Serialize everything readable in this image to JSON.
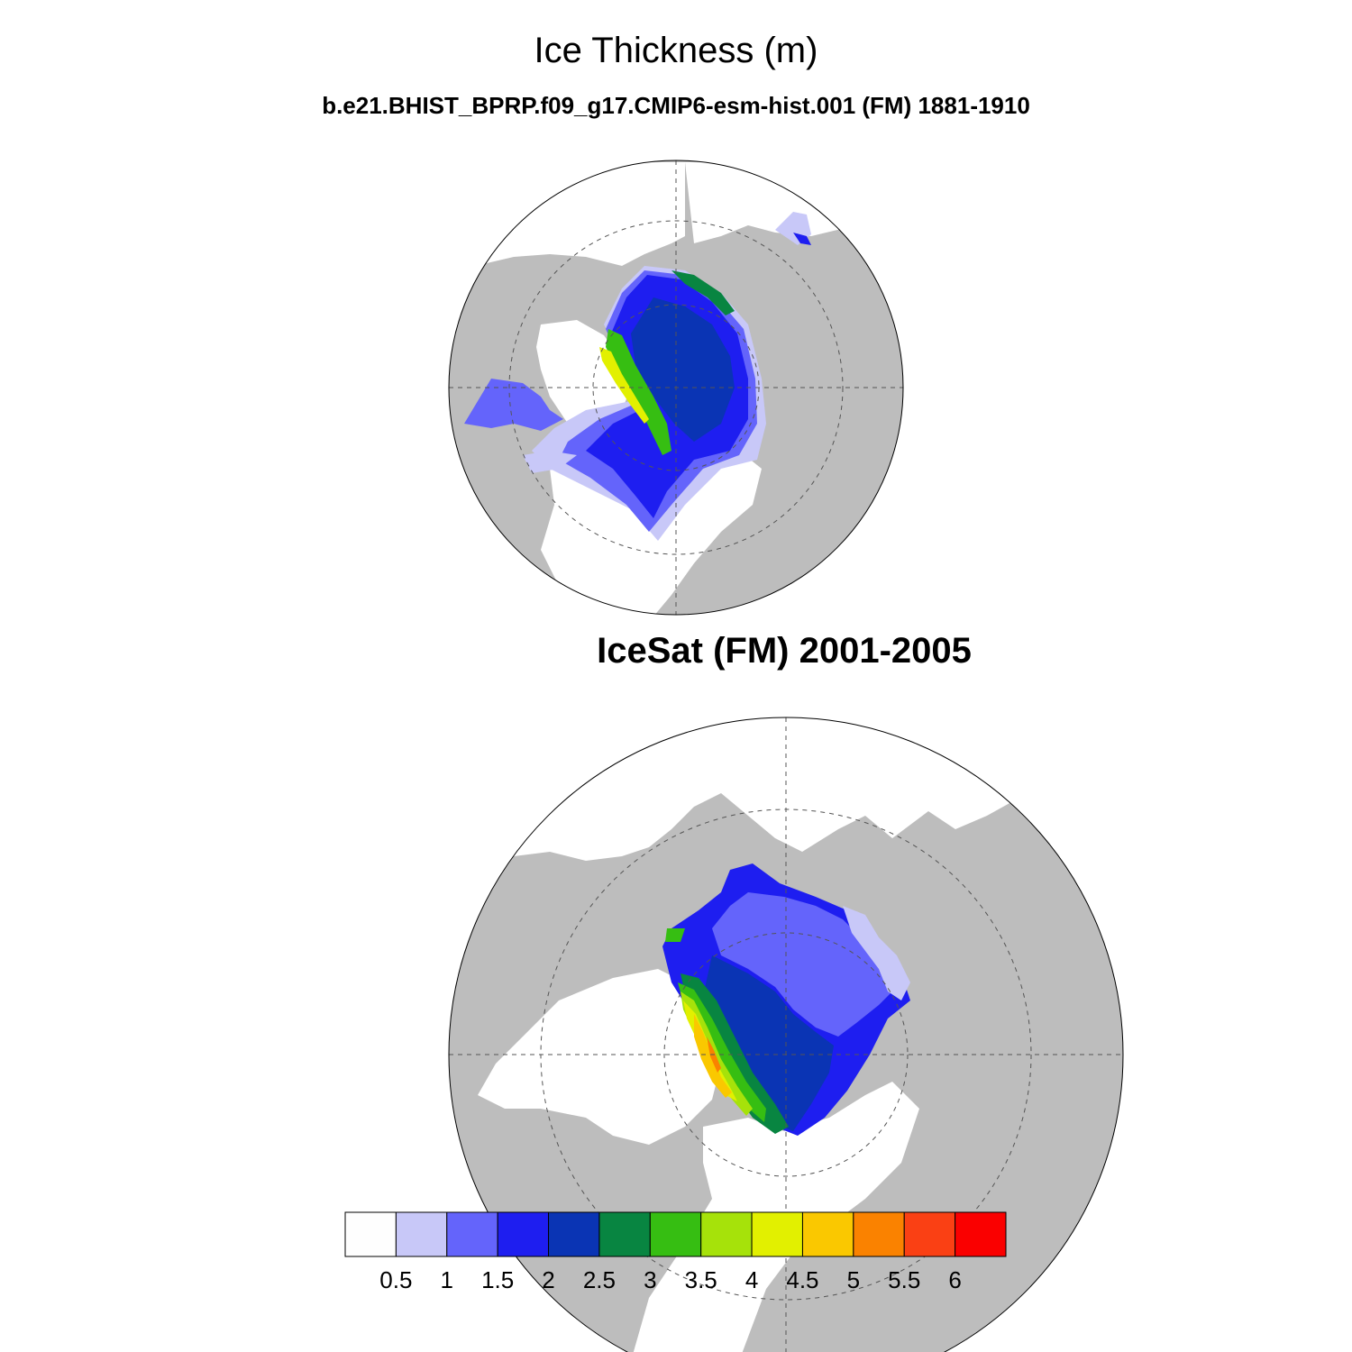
{
  "figure": {
    "title": "Ice Thickness (m)",
    "subtitle": "b.e21.BHIST_BPRP.f09_g17.CMIP6-esm-hist.001 (FM) 1881-1910",
    "panel2_title": "IceSat (FM) 2001-2005"
  },
  "colors": {
    "land": "#bdbdbd",
    "ocean_no_ice": "#ffffff"
  },
  "colorbar": {
    "colors": [
      "#fefefe",
      "#c8c8f8",
      "#6464fb",
      "#1e1ef0",
      "#0a34b4",
      "#088541",
      "#36be12",
      "#a6e20a",
      "#e2f000",
      "#fac800",
      "#fa8200",
      "#fa4014",
      "#fa0000"
    ],
    "labels": [
      "0.5",
      "1",
      "1.5",
      "2",
      "2.5",
      "3",
      "3.5",
      "4",
      "4.5",
      "5",
      "5.5",
      "6"
    ]
  }
}
